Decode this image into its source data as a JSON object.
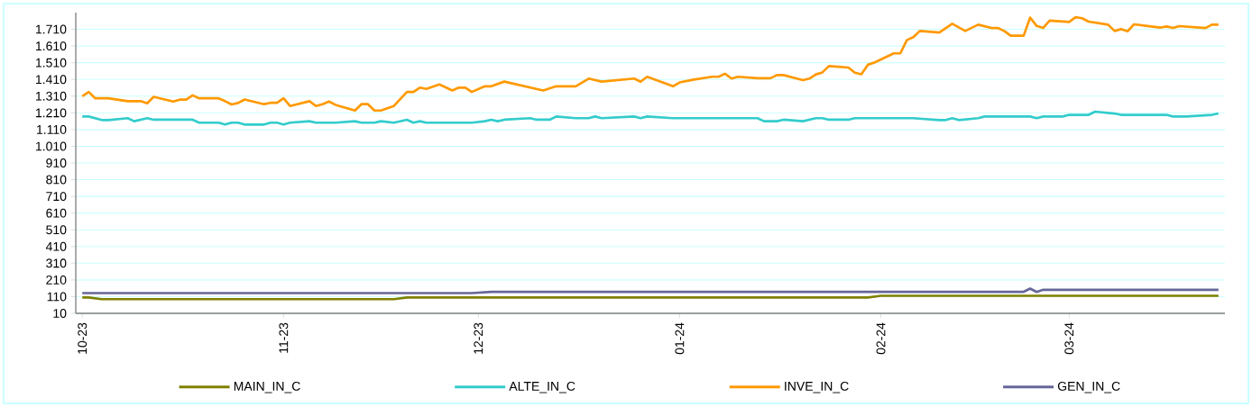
{
  "chart_data": {
    "type": "line",
    "xlim": [
      "2023-09-30",
      "2024-03-25"
    ],
    "xticks": [
      {
        "value": "2023-10-01",
        "label": "10-23"
      },
      {
        "value": "2023-11-01",
        "label": "11-23"
      },
      {
        "value": "2023-12-01",
        "label": "12-23"
      },
      {
        "value": "2024-01-01",
        "label": "01-24"
      },
      {
        "value": "2024-02-01",
        "label": "02-24"
      },
      {
        "value": "2024-03-01",
        "label": "03-24"
      }
    ],
    "ylim": [
      10,
      1810
    ],
    "yticks": [
      10,
      110,
      210,
      310,
      410,
      510,
      610,
      710,
      810,
      910,
      {
        "value": 1010,
        "label": "1.010"
      },
      {
        "value": 1110,
        "label": "1.110"
      },
      {
        "value": 1210,
        "label": "1.210"
      },
      {
        "value": 1310,
        "label": "1.310"
      },
      {
        "value": 1410,
        "label": "1.410"
      },
      {
        "value": 1510,
        "label": "1.510"
      },
      {
        "value": 1610,
        "label": "1.610"
      },
      {
        "value": 1710,
        "label": "1.710"
      }
    ],
    "grid": "y",
    "legend": "bottom",
    "marker": "none",
    "series": [
      {
        "name": "MAIN_IN_C",
        "color": "#808000",
        "x": [
          "2023-10-01",
          "2023-10-02",
          "2023-10-04",
          "2023-11-18",
          "2023-11-20",
          "2024-01-30",
          "2024-02-01",
          "2024-03-24"
        ],
        "values": [
          105,
          105,
          95,
          95,
          105,
          105,
          115,
          115
        ]
      },
      {
        "name": "ALTE_IN_C",
        "color": "#33cccc",
        "x": [
          "2023-10-01",
          "2023-10-02",
          "2023-10-04",
          "2023-10-05",
          "2023-10-08",
          "2023-10-09",
          "2023-10-11",
          "2023-10-12",
          "2023-10-18",
          "2023-10-19",
          "2023-10-22",
          "2023-10-23",
          "2023-10-24",
          "2023-10-25",
          "2023-10-26",
          "2023-10-29",
          "2023-10-30",
          "2023-10-31",
          "2023-11-01",
          "2023-11-02",
          "2023-11-05",
          "2023-11-06",
          "2023-11-09",
          "2023-11-12",
          "2023-11-13",
          "2023-11-15",
          "2023-11-16",
          "2023-11-18",
          "2023-11-20",
          "2023-11-21",
          "2023-11-22",
          "2023-11-23",
          "2023-11-30",
          "2023-12-02",
          "2023-12-03",
          "2023-12-04",
          "2023-12-05",
          "2023-12-09",
          "2023-12-10",
          "2023-12-12",
          "2023-12-13",
          "2023-12-16",
          "2023-12-18",
          "2023-12-19",
          "2023-12-20",
          "2023-12-25",
          "2023-12-26",
          "2023-12-27",
          "2023-12-31",
          "2024-01-13",
          "2024-01-14",
          "2024-01-16",
          "2024-01-17",
          "2024-01-20",
          "2024-01-22",
          "2024-01-23",
          "2024-01-24",
          "2024-01-27",
          "2024-01-28",
          "2024-02-06",
          "2024-02-10",
          "2024-02-11",
          "2024-02-12",
          "2024-02-13",
          "2024-02-16",
          "2024-02-17",
          "2024-02-24",
          "2024-02-25",
          "2024-02-26",
          "2024-02-29",
          "2024-03-01",
          "2024-03-04",
          "2024-03-05",
          "2024-03-08",
          "2024-03-09",
          "2024-03-16",
          "2024-03-17",
          "2024-03-19",
          "2024-03-23",
          "2024-03-24"
        ],
        "values": [
          1188,
          1188,
          1167,
          1167,
          1178,
          1160,
          1178,
          1169,
          1169,
          1151,
          1151,
          1140,
          1151,
          1151,
          1140,
          1140,
          1151,
          1151,
          1140,
          1151,
          1160,
          1151,
          1151,
          1160,
          1151,
          1151,
          1160,
          1151,
          1169,
          1151,
          1160,
          1151,
          1151,
          1160,
          1169,
          1160,
          1169,
          1178,
          1169,
          1169,
          1188,
          1178,
          1178,
          1188,
          1178,
          1188,
          1178,
          1188,
          1178,
          1178,
          1160,
          1160,
          1169,
          1160,
          1178,
          1178,
          1169,
          1169,
          1178,
          1178,
          1167,
          1167,
          1178,
          1167,
          1178,
          1188,
          1188,
          1178,
          1188,
          1188,
          1198,
          1198,
          1217,
          1206,
          1198,
          1198,
          1188,
          1188,
          1198,
          1206
        ]
      },
      {
        "name": "INVE_IN_C",
        "color": "#ff9900",
        "x": [
          "2023-10-01",
          "2023-10-02",
          "2023-10-03",
          "2023-10-05",
          "2023-10-08",
          "2023-10-10",
          "2023-10-11",
          "2023-10-12",
          "2023-10-15",
          "2023-10-16",
          "2023-10-17",
          "2023-10-18",
          "2023-10-19",
          "2023-10-22",
          "2023-10-23",
          "2023-10-24",
          "2023-10-25",
          "2023-10-26",
          "2023-10-29",
          "2023-10-30",
          "2023-10-31",
          "2023-11-01",
          "2023-11-02",
          "2023-11-05",
          "2023-11-06",
          "2023-11-07",
          "2023-11-08",
          "2023-11-09",
          "2023-11-12",
          "2023-11-13",
          "2023-11-14",
          "2023-11-15",
          "2023-11-16",
          "2023-11-18",
          "2023-11-20",
          "2023-11-21",
          "2023-11-22",
          "2023-11-23",
          "2023-11-25",
          "2023-11-27",
          "2023-11-28",
          "2023-11-29",
          "2023-11-30",
          "2023-12-02",
          "2023-12-03",
          "2023-12-05",
          "2023-12-11",
          "2023-12-13",
          "2023-12-16",
          "2023-12-18",
          "2023-12-20",
          "2023-12-25",
          "2023-12-26",
          "2023-12-27",
          "2023-12-31",
          "2024-01-01",
          "2024-01-03",
          "2024-01-06",
          "2024-01-07",
          "2024-01-08",
          "2024-01-09",
          "2024-01-10",
          "2024-01-13",
          "2024-01-15",
          "2024-01-16",
          "2024-01-17",
          "2024-01-20",
          "2024-01-21",
          "2024-01-22",
          "2024-01-23",
          "2024-01-24",
          "2024-01-27",
          "2024-01-28",
          "2024-01-29",
          "2024-01-30",
          "2024-01-31",
          "2024-02-03",
          "2024-02-04",
          "2024-02-05",
          "2024-02-06",
          "2024-02-07",
          "2024-02-10",
          "2024-02-12",
          "2024-02-14",
          "2024-02-16",
          "2024-02-18",
          "2024-02-19",
          "2024-02-20",
          "2024-02-21",
          "2024-02-23",
          "2024-02-24",
          "2024-02-25",
          "2024-02-26",
          "2024-02-27",
          "2024-03-01",
          "2024-03-02",
          "2024-03-03",
          "2024-03-04",
          "2024-03-07",
          "2024-03-08",
          "2024-03-09",
          "2024-03-10",
          "2024-03-11",
          "2024-03-15",
          "2024-03-16",
          "2024-03-17",
          "2024-03-18",
          "2024-03-22",
          "2024-03-23",
          "2024-03-24"
        ],
        "values": [
          1310,
          1335,
          1297,
          1297,
          1280,
          1280,
          1267,
          1306,
          1278,
          1289,
          1289,
          1315,
          1297,
          1297,
          1280,
          1260,
          1269,
          1290,
          1262,
          1270,
          1270,
          1297,
          1251,
          1280,
          1251,
          1262,
          1278,
          1258,
          1224,
          1262,
          1262,
          1224,
          1224,
          1251,
          1335,
          1335,
          1361,
          1353,
          1380,
          1344,
          1361,
          1361,
          1335,
          1369,
          1369,
          1397,
          1344,
          1369,
          1369,
          1415,
          1397,
          1415,
          1396,
          1426,
          1369,
          1392,
          1408,
          1426,
          1426,
          1444,
          1415,
          1426,
          1417,
          1417,
          1436,
          1436,
          1406,
          1415,
          1440,
          1452,
          1490,
          1481,
          1450,
          1441,
          1498,
          1511,
          1566,
          1566,
          1645,
          1663,
          1700,
          1691,
          1743,
          1700,
          1738,
          1718,
          1718,
          1700,
          1672,
          1672,
          1780,
          1730,
          1718,
          1762,
          1754,
          1782,
          1776,
          1756,
          1738,
          1700,
          1711,
          1698,
          1740,
          1720,
          1727,
          1718,
          1729,
          1718,
          1738,
          1738
        ]
      },
      {
        "name": "GEN_IN_C",
        "color": "#666699",
        "x": [
          "2023-10-01",
          "2023-11-30",
          "2023-12-03",
          "2024-02-23",
          "2024-02-24",
          "2024-02-25",
          "2024-02-26",
          "2024-03-24"
        ],
        "values": [
          131,
          131,
          139,
          139,
          158,
          138,
          151,
          151
        ]
      }
    ]
  }
}
